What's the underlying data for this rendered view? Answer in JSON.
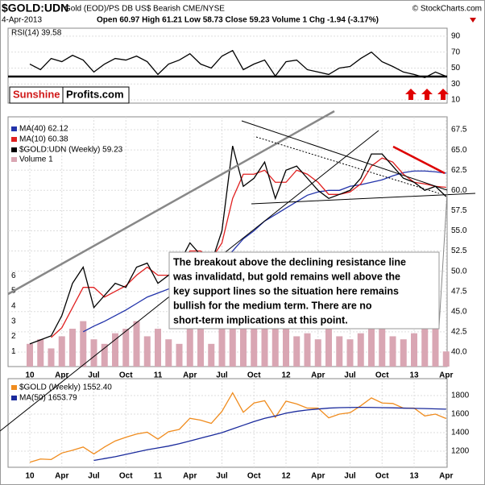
{
  "header": {
    "symbol": "$GOLD:UDN",
    "description": "Gold (EOD)/PS DB US$ Bearish CME/NYSE",
    "copyright": "© StockCharts.com",
    "date": "4-Apr-2013",
    "quote": "Open 60.97 High 61.21 Low 58.73 Close 59.23 Volume 1 Chg -1.94 (-3.17%)"
  },
  "logo": {
    "part1": "Sunshine",
    "part2": "Profits.com"
  },
  "annotation": [
    "The breakout above the declining resistance line",
    "was invalidatd, but gold remains well above the",
    "key support lines so the situation here remains",
    "bullish for the medium term. There are no",
    "short-term implications at this point."
  ],
  "chart_data": [
    {
      "type": "line",
      "ylim": [
        6,
        100
      ],
      "yticks": [
        10,
        30,
        50,
        70,
        90
      ],
      "grid": true,
      "series": [
        {
          "name": "RSI(14) 39.58",
          "color": "#000000",
          "values": [
            55,
            48,
            62,
            58,
            66,
            60,
            45,
            55,
            62,
            60,
            65,
            58,
            42,
            55,
            60,
            68,
            55,
            50,
            65,
            72,
            48,
            55,
            60,
            40,
            58,
            60,
            48,
            45,
            42,
            50,
            52,
            62,
            70,
            58,
            52,
            45,
            42,
            38,
            45,
            39.58
          ]
        }
      ]
    },
    {
      "type": "line",
      "ylim": [
        38.2,
        69.1
      ],
      "grid": true,
      "yticks": [
        {
          "value": 40,
          "label": "40.0"
        },
        42.5,
        {
          "value": 45,
          "label": "45.0"
        },
        47.5,
        {
          "value": 50,
          "label": "50.0"
        },
        52.5,
        {
          "value": 55,
          "label": "55.0"
        },
        57.5,
        {
          "value": 60,
          "label": "60.0"
        },
        62.5,
        {
          "value": 65,
          "label": "65.0"
        },
        67.5
      ],
      "y2lim": [
        0,
        16.5
      ],
      "y2ticks": [
        1,
        2,
        3,
        4,
        5,
        6
      ],
      "categories": [
        "10",
        null,
        null,
        "Apr",
        null,
        null,
        "Jul",
        null,
        null,
        "Oct",
        null,
        null,
        "11",
        null,
        null,
        "Apr",
        null,
        null,
        "Jul",
        null,
        null,
        "Oct",
        null,
        null,
        "12",
        null,
        null,
        "Apr",
        null,
        null,
        "Jul",
        null,
        null,
        "Oct",
        null,
        null,
        "13",
        null,
        null,
        "Apr"
      ],
      "series": [
        {
          "name": "Volume 1",
          "color": "#d9a6b3",
          "type": "bar",
          "axis": "y2",
          "values": [
            1.5,
            1.8,
            1.2,
            2.0,
            2.5,
            3.0,
            1.8,
            1.5,
            2.2,
            2.5,
            3.0,
            2.0,
            2.5,
            1.8,
            1.5,
            3.0,
            2.8,
            1.5,
            2.5,
            4.0,
            3.5,
            3.0,
            2.8,
            3.5,
            2.5,
            2.0,
            2.2,
            1.8,
            2.5,
            2.0,
            1.8,
            2.2,
            3.0,
            2.5,
            2.0,
            1.8,
            2.2,
            2.5,
            3.5,
            1
          ]
        },
        {
          "name": "MA(40) 62.12",
          "color": "#2233aa",
          "values": [
            null,
            null,
            null,
            null,
            null,
            42.5,
            43.2,
            43.8,
            44.5,
            45.2,
            46.0,
            46.8,
            47.3,
            47.8,
            48.3,
            49.0,
            49.6,
            50.2,
            51.0,
            52.5,
            54.0,
            55.0,
            56.2,
            57.0,
            57.8,
            58.6,
            59.4,
            59.8,
            60.0,
            60.0,
            60.5,
            60.7,
            61.0,
            61.3,
            61.8,
            62.2,
            62.4,
            62.4,
            62.3,
            62.12
          ]
        },
        {
          "name": "MA(10) 60.38",
          "color": "#e02020",
          "values": [
            null,
            null,
            41.8,
            43.0,
            45.5,
            48.0,
            48.0,
            46.8,
            47.5,
            48.2,
            49.5,
            50.5,
            49.5,
            49.5,
            50.5,
            52.5,
            52.5,
            51.5,
            53.5,
            59.0,
            62.0,
            62.0,
            62.5,
            61.0,
            61.0,
            62.5,
            62.0,
            61.0,
            59.5,
            59.5,
            59.8,
            60.8,
            63.0,
            64.0,
            63.5,
            62.0,
            61.0,
            60.8,
            60.5,
            60.38
          ]
        },
        {
          "name": "$GOLD:UDN (Weekly) 59.23",
          "color": "#000000",
          "values": [
            41.0,
            41.5,
            42.0,
            44.5,
            48.5,
            50.5,
            45.5,
            47.0,
            48.5,
            48.0,
            50.5,
            51.0,
            48.5,
            49.5,
            51.0,
            53.5,
            52.0,
            51.0,
            55.0,
            65.5,
            60.5,
            61.5,
            63.5,
            59.0,
            62.5,
            63.0,
            61.5,
            60.0,
            59.0,
            59.5,
            60.0,
            61.5,
            64.5,
            64.5,
            63.0,
            61.5,
            61.0,
            60.0,
            60.5,
            59.23
          ]
        }
      ]
    },
    {
      "type": "line",
      "ylim": [
        1026,
        1983
      ],
      "yticks": [
        1200,
        1400,
        1600,
        1800
      ],
      "grid": true,
      "categories": [
        "10",
        null,
        null,
        "Apr",
        null,
        null,
        "Jul",
        null,
        null,
        "Oct",
        null,
        null,
        "11",
        null,
        null,
        "Apr",
        null,
        null,
        "Jul",
        null,
        null,
        "Oct",
        null,
        null,
        "12",
        null,
        null,
        "Apr",
        null,
        null,
        "Jul",
        null,
        null,
        "Oct",
        null,
        null,
        "13",
        null,
        null,
        "Apr"
      ],
      "series": [
        {
          "name": "$GOLD (Weekly) 1552.40",
          "color": "#f08c1e",
          "values": [
            1080,
            1115,
            1110,
            1180,
            1210,
            1245,
            1170,
            1245,
            1310,
            1350,
            1385,
            1405,
            1330,
            1410,
            1435,
            1555,
            1535,
            1500,
            1630,
            1830,
            1620,
            1720,
            1745,
            1565,
            1740,
            1710,
            1665,
            1665,
            1560,
            1600,
            1615,
            1690,
            1775,
            1720,
            1715,
            1665,
            1665,
            1580,
            1600,
            1552.4
          ]
        },
        {
          "name": "MA(50) 1653.79",
          "color": "#1a2a9c",
          "values": [
            null,
            null,
            null,
            null,
            null,
            null,
            1100,
            1120,
            1140,
            1165,
            1190,
            1215,
            1235,
            1255,
            1280,
            1310,
            1340,
            1370,
            1400,
            1440,
            1480,
            1520,
            1555,
            1580,
            1610,
            1630,
            1645,
            1655,
            1665,
            1670,
            1672,
            1673,
            1672,
            1670,
            1668,
            1665,
            1662,
            1660,
            1657,
            1653.79
          ]
        }
      ]
    }
  ]
}
